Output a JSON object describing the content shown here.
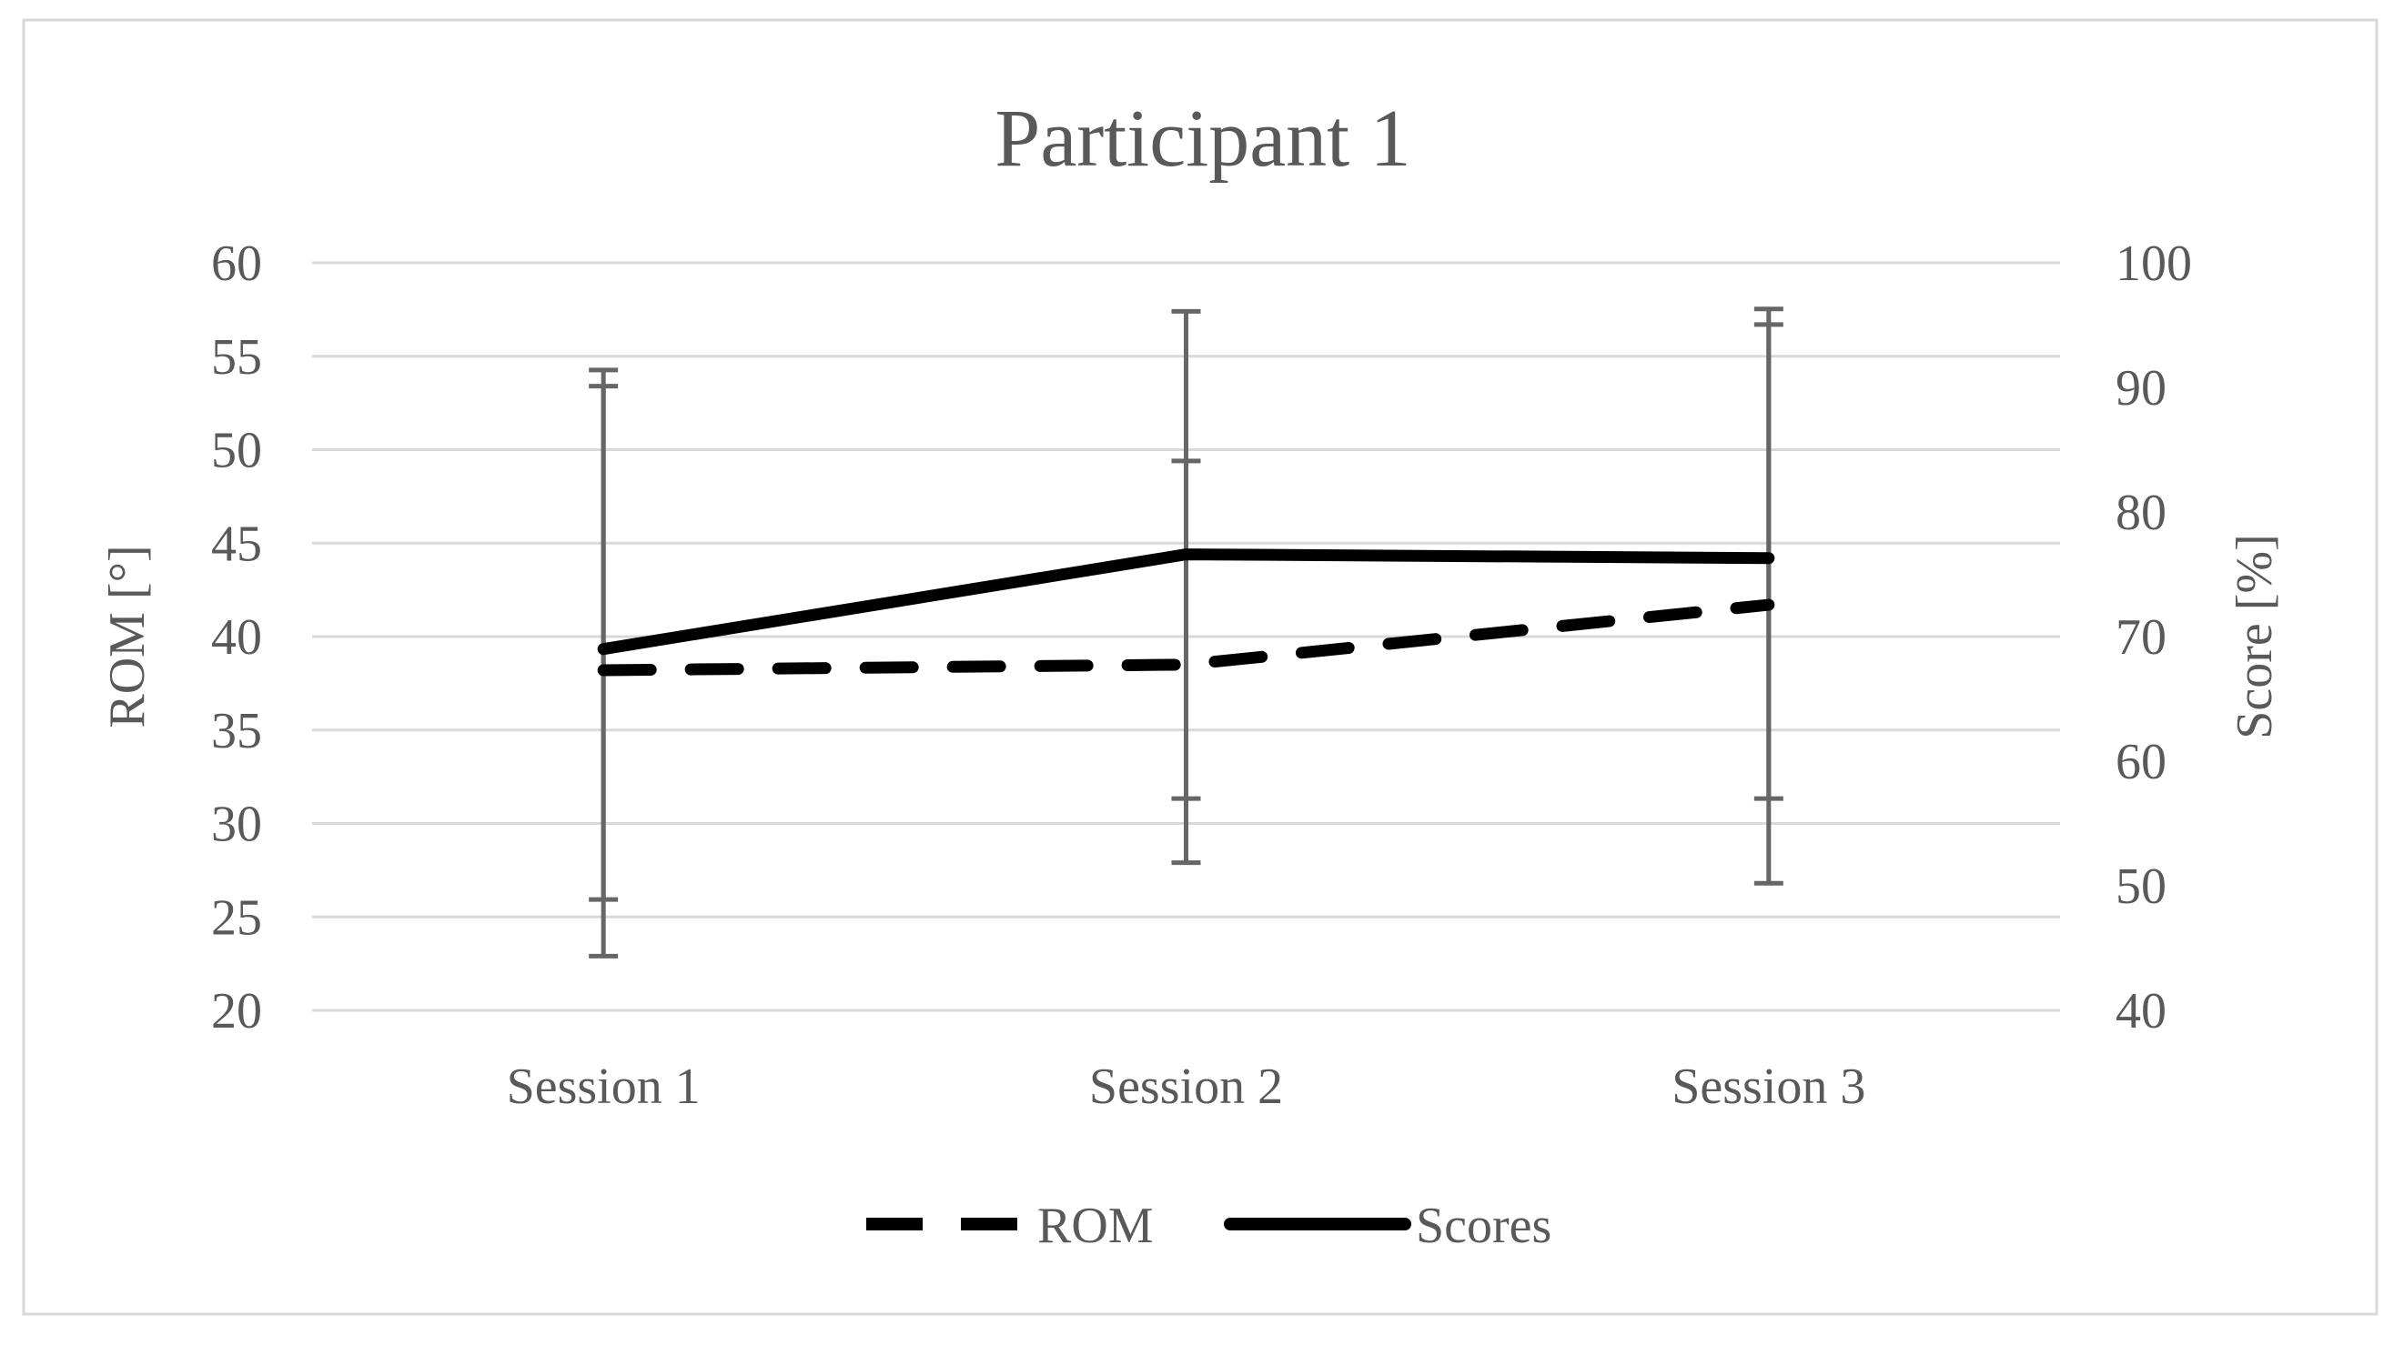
{
  "figure": {
    "background": "#ffffff",
    "border_color": "#d9d9d9",
    "text_color": "#595959",
    "gridline_color": "#d9d9d9",
    "series_color": "#000000",
    "error_bar_color": "#666666"
  },
  "chart_data": {
    "type": "line",
    "title": "Participant 1",
    "categories": [
      "Session 1",
      "Session 2",
      "Session 3"
    ],
    "grid": true,
    "legend_position": "bottom",
    "left_axis": {
      "label": "ROM [°]",
      "min": 20,
      "max": 60,
      "step": 5,
      "ticks": [
        60,
        55,
        50,
        45,
        40,
        35,
        30,
        25,
        20
      ]
    },
    "right_axis": {
      "label": "Score [%]",
      "min": 40,
      "max": 100,
      "step": 10,
      "ticks": [
        100,
        90,
        80,
        70,
        60,
        50,
        40
      ]
    },
    "series": [
      {
        "name": "ROM",
        "axis": "left",
        "style": "dashed",
        "values": [
          38.2,
          38.5,
          41.7
        ],
        "error_low": [
          22.9,
          27.9,
          26.8
        ],
        "error_high": [
          53.4,
          49.4,
          56.7
        ]
      },
      {
        "name": "Scores",
        "axis": "right",
        "style": "solid",
        "values": [
          69.0,
          76.6,
          76.3
        ],
        "error_low": [
          48.9,
          57.0,
          57.0
        ],
        "error_high": [
          91.4,
          96.1,
          96.3
        ]
      }
    ]
  }
}
